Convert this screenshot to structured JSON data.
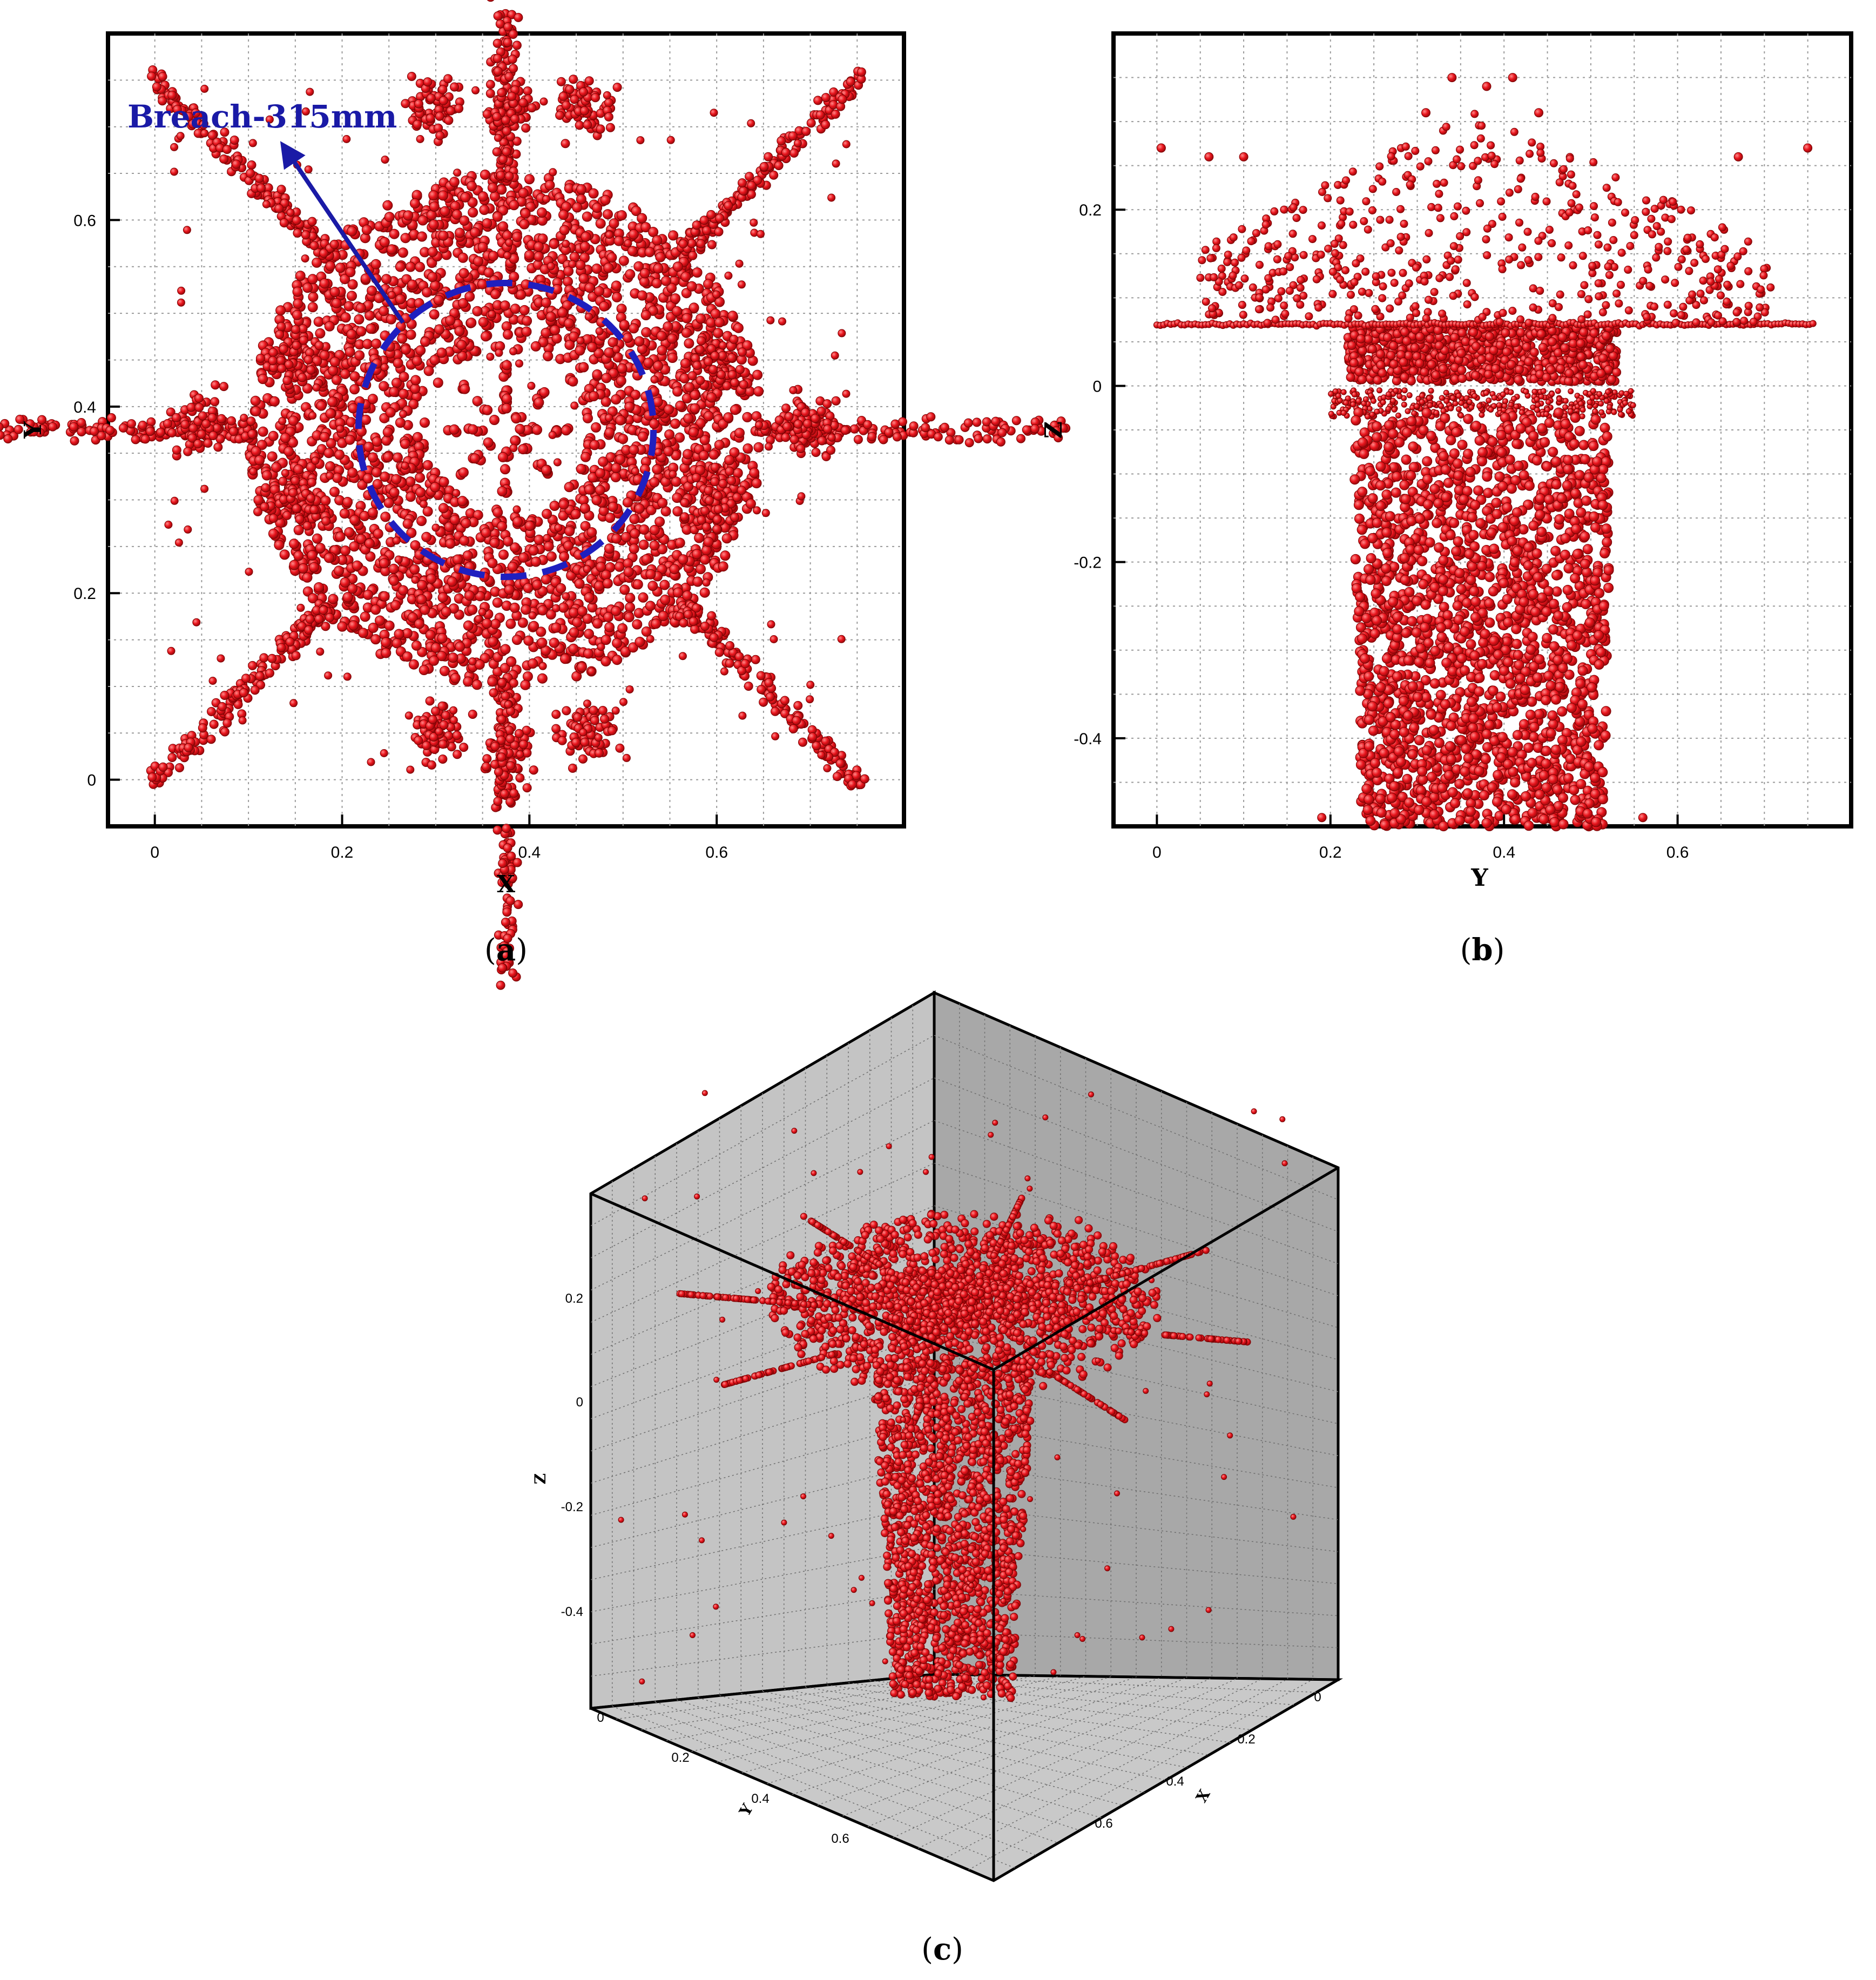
{
  "chart_data": [
    {
      "panel": "a",
      "type": "scatter",
      "caption": "a",
      "xlabel": "X",
      "ylabel": "Y",
      "xlim": [
        -0.05,
        0.8
      ],
      "ylim": [
        -0.05,
        0.8
      ],
      "xticks": [
        "0",
        "0.2",
        "0.4",
        "0.6"
      ],
      "yticks": [
        "0",
        "0.2",
        "0.4",
        "0.6"
      ],
      "grid": true,
      "annotation": {
        "text": "Breach-315mm",
        "circle_center": [
          0.375,
          0.375
        ],
        "circle_diameter": 0.315
      },
      "marker_color": "#e8141c",
      "circle_color": "#1f1fbf"
    },
    {
      "panel": "b",
      "type": "scatter",
      "caption": "b",
      "xlabel": "Y",
      "ylabel": "Z",
      "xlim": [
        -0.05,
        0.8
      ],
      "ylim": [
        -0.5,
        0.4
      ],
      "xticks": [
        "0",
        "0.2",
        "0.4",
        "0.6"
      ],
      "yticks": [
        "-0.4",
        "-0.2",
        "0",
        "0.2"
      ],
      "grid": true,
      "marker_color": "#e8141c"
    },
    {
      "panel": "c",
      "type": "scatter",
      "caption": "c",
      "axes": {
        "x": "X",
        "y": "Y",
        "z": "Z"
      },
      "xticks": [
        "0",
        "0.2",
        "0.4",
        "0.6"
      ],
      "yticks": [
        "0",
        "0.2",
        "0.4",
        "0.6"
      ],
      "zticks": [
        "0.2",
        "0",
        "-0.2",
        "-0.4"
      ],
      "grid": true,
      "marker_color": "#e8141c",
      "wall_color": "#bdbdbd"
    }
  ]
}
